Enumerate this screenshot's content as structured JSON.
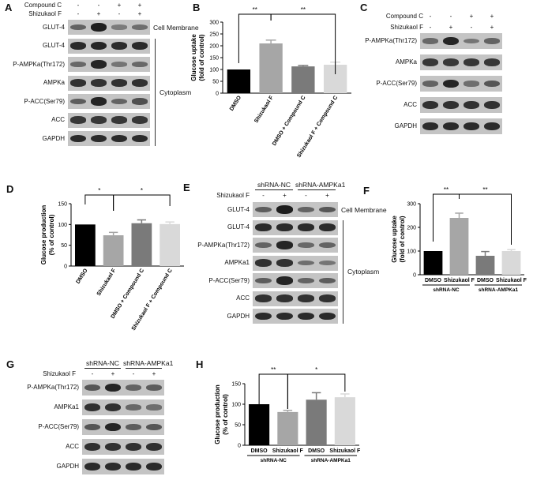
{
  "panels": {
    "A": "A",
    "B": "B",
    "C": "C",
    "D": "D",
    "E": "E",
    "F": "F",
    "G": "G",
    "H": "H"
  },
  "blotA": {
    "treatments": [
      {
        "label": "Compound C",
        "signs": [
          "-",
          "-",
          "+",
          "+"
        ]
      },
      {
        "label": "Shizukaol F",
        "signs": [
          "-",
          "+",
          "-",
          "+"
        ]
      }
    ],
    "rows": [
      {
        "label": "GLUT-4",
        "bands": [
          0.45,
          1.0,
          0.25,
          0.35
        ]
      },
      {
        "label": "GLUT-4",
        "bands": [
          0.9,
          0.95,
          0.9,
          0.9
        ]
      },
      {
        "label": "P-AMPKa(Thr172)",
        "bands": [
          0.4,
          0.95,
          0.3,
          0.4
        ]
      },
      {
        "label": "AMPKa",
        "bands": [
          0.85,
          0.85,
          0.85,
          0.85
        ]
      },
      {
        "label": "P-ACC(Ser79)",
        "bands": [
          0.5,
          0.95,
          0.45,
          0.6
        ]
      },
      {
        "label": "ACC",
        "bands": [
          0.8,
          0.8,
          0.8,
          0.8
        ]
      },
      {
        "label": "GAPDH",
        "bands": [
          0.9,
          0.9,
          0.9,
          0.9
        ]
      }
    ],
    "region_membrane": "Cell Membrane",
    "region_cytoplasm": "Cytoplasm"
  },
  "blotC": {
    "treatments": [
      {
        "label": "Compound C",
        "signs": [
          "-",
          "-",
          "+",
          "+"
        ]
      },
      {
        "label": "Shizukaol F",
        "signs": [
          "-",
          "+",
          "-",
          "+"
        ]
      }
    ],
    "rows": [
      {
        "label": "P-AMPKa(Thr172)",
        "bands": [
          0.4,
          0.95,
          0.3,
          0.45
        ]
      },
      {
        "label": "AMPKa",
        "bands": [
          0.8,
          0.8,
          0.8,
          0.8
        ]
      },
      {
        "label": "P-ACC(Ser79)",
        "bands": [
          0.45,
          0.95,
          0.35,
          0.55
        ]
      },
      {
        "label": "ACC",
        "bands": [
          0.85,
          0.85,
          0.85,
          0.85
        ]
      },
      {
        "label": "GAPDH",
        "bands": [
          0.9,
          0.9,
          0.9,
          0.9
        ]
      }
    ]
  },
  "blotE": {
    "groups": [
      "shRNA-NC",
      "shRNA-AMPKa1"
    ],
    "treatment": {
      "label": "Shizukaol F",
      "signs": [
        "-",
        "+",
        "-",
        "+"
      ]
    },
    "rows": [
      {
        "label": "GLUT-4",
        "bands": [
          0.5,
          1.0,
          0.45,
          0.55
        ]
      },
      {
        "label": "GLUT-4",
        "bands": [
          0.9,
          0.9,
          0.9,
          0.9
        ]
      },
      {
        "label": "P-AMPKa(Thr172)",
        "bands": [
          0.45,
          0.95,
          0.4,
          0.45
        ]
      },
      {
        "label": "AMPKa1",
        "bands": [
          0.85,
          0.85,
          0.35,
          0.3
        ]
      },
      {
        "label": "P-ACC(Ser79)",
        "bands": [
          0.5,
          0.95,
          0.45,
          0.5
        ]
      },
      {
        "label": "ACC",
        "bands": [
          0.85,
          0.85,
          0.85,
          0.85
        ]
      },
      {
        "label": "GAPDH",
        "bands": [
          0.9,
          0.9,
          0.9,
          0.9
        ]
      }
    ],
    "region_membrane": "Cell Membrane",
    "region_cytoplasm": "Cytoplasm"
  },
  "blotG": {
    "groups": [
      "shRNA-NC",
      "shRNA-AMPKa1"
    ],
    "treatment": {
      "label": "Shizukaol F",
      "signs": [
        "-",
        "+",
        "-",
        "+"
      ]
    },
    "rows": [
      {
        "label": "P-AMPKa(Thr172)",
        "bands": [
          0.55,
          0.95,
          0.45,
          0.5
        ]
      },
      {
        "label": "AMPKa1",
        "bands": [
          0.85,
          0.85,
          0.4,
          0.35
        ]
      },
      {
        "label": "P-ACC(Ser79)",
        "bands": [
          0.55,
          0.95,
          0.5,
          0.55
        ]
      },
      {
        "label": "ACC",
        "bands": [
          0.85,
          0.85,
          0.85,
          0.85
        ]
      },
      {
        "label": "GAPDH",
        "bands": [
          0.9,
          0.9,
          0.9,
          0.9
        ]
      }
    ]
  },
  "chart_data": [
    {
      "panel": "B",
      "type": "bar",
      "ylabel": "Glucose uptake\n(fold of control)",
      "ylim": [
        0,
        300
      ],
      "yticks": [
        0,
        50,
        100,
        150,
        200,
        250,
        300
      ],
      "categories": [
        "DMSO",
        "Shizukaol F",
        "DMSO + Compound C",
        "Shizukaol F + Compound C"
      ],
      "values": [
        100,
        210,
        113,
        120
      ],
      "errors": [
        0,
        14,
        4,
        11
      ],
      "colors": [
        "#000000",
        "#a6a6a6",
        "#7a7a7a",
        "#d9d9d9"
      ],
      "significance": [
        {
          "from": 0,
          "to": 1,
          "label": "**"
        },
        {
          "from": 1,
          "to": 3,
          "label": "**"
        }
      ]
    },
    {
      "panel": "D",
      "type": "bar",
      "ylabel": "Glucose production\n(% of control)",
      "ylim": [
        0,
        150
      ],
      "yticks": [
        0,
        50,
        100,
        150
      ],
      "categories": [
        "DMSO",
        "Shizukaol F",
        "DMSO + Compound C",
        "Shizukaol F + Compound C"
      ],
      "values": [
        100,
        74,
        103,
        101
      ],
      "errors": [
        0,
        7,
        8,
        5
      ],
      "colors": [
        "#000000",
        "#a6a6a6",
        "#7a7a7a",
        "#d9d9d9"
      ],
      "significance": [
        {
          "from": 0,
          "to": 1,
          "label": "*"
        },
        {
          "from": 1,
          "to": 3,
          "label": "*"
        }
      ]
    },
    {
      "panel": "F",
      "type": "bar",
      "ylabel": "Glucose uptake\n(fold of control)",
      "ylim": [
        0,
        300
      ],
      "yticks": [
        0,
        100,
        200,
        300
      ],
      "categories": [
        "DMSO",
        "Shizukaol F",
        "DMSO",
        "Shizukaol F"
      ],
      "groups": [
        "shRNA-NC",
        "shRNA-AMPKa1"
      ],
      "values": [
        100,
        240,
        80,
        100
      ],
      "errors": [
        0,
        20,
        18,
        6
      ],
      "colors": [
        "#000000",
        "#a6a6a6",
        "#7a7a7a",
        "#d9d9d9"
      ],
      "significance": [
        {
          "from": 0,
          "to": 1,
          "label": "**"
        },
        {
          "from": 1,
          "to": 3,
          "label": "**"
        }
      ]
    },
    {
      "panel": "H",
      "type": "bar",
      "ylabel": "Glucose production\n(% of control)",
      "ylim": [
        0,
        150
      ],
      "yticks": [
        0,
        50,
        100,
        150
      ],
      "categories": [
        "DMSO",
        "Shizukaol F",
        "DMSO",
        "Shizukaol F"
      ],
      "groups": [
        "shRNA-NC",
        "shRNA-AMPKa1"
      ],
      "values": [
        100,
        81,
        111,
        117
      ],
      "errors": [
        0,
        4,
        17,
        8
      ],
      "colors": [
        "#000000",
        "#a6a6a6",
        "#7a7a7a",
        "#d9d9d9"
      ],
      "significance": [
        {
          "from": 0,
          "to": 1,
          "label": "**"
        },
        {
          "from": 1,
          "to": 3,
          "label": "*"
        }
      ]
    }
  ]
}
